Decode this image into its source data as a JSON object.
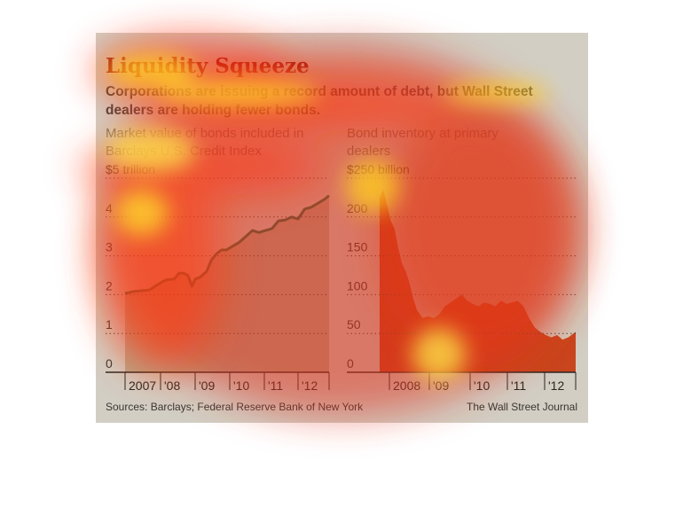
{
  "title": "Liquidity Squeeze",
  "subtitle": "Corporations are issuing a record amount of debt, but Wall Street dealers are holding fewer bonds.",
  "source": "Sources: Barclays; Federal Reserve Bank of New York",
  "credit": "The Wall Street Journal",
  "colors": {
    "panel_bg": "#d2cec4",
    "left_fill": "#b6a98f",
    "left_line": "#2c6b46",
    "right_fill": "#c8461e",
    "grid": "#4a4540"
  },
  "chart_data": [
    {
      "type": "area",
      "label": "Market value of bonds included in Barclays U.S. Credit Index",
      "unit_label": "$5 trillion",
      "yticks": [
        "0",
        "1",
        "2",
        "3",
        "4"
      ],
      "ylim": [
        0,
        5
      ],
      "xlim": [
        2006.5,
        2012.75
      ],
      "xtick_labels": [
        "2007",
        "'08",
        "'09",
        "'10",
        "'11",
        "'12"
      ],
      "x": [
        2006.5,
        2006.75,
        2007.0,
        2007.25,
        2007.5,
        2007.75,
        2008.0,
        2008.15,
        2008.3,
        2008.42,
        2008.55,
        2008.65,
        2008.8,
        2009.0,
        2009.15,
        2009.3,
        2009.45,
        2009.6,
        2009.8,
        2010.0,
        2010.2,
        2010.4,
        2010.6,
        2010.8,
        2011.0,
        2011.2,
        2011.4,
        2011.6,
        2011.8,
        2012.0,
        2012.2,
        2012.4,
        2012.6,
        2012.75
      ],
      "y": [
        2.03,
        2.08,
        2.1,
        2.12,
        2.26,
        2.38,
        2.4,
        2.55,
        2.55,
        2.5,
        2.22,
        2.4,
        2.45,
        2.6,
        2.9,
        3.05,
        3.15,
        3.15,
        3.25,
        3.35,
        3.5,
        3.65,
        3.6,
        3.65,
        3.7,
        3.9,
        3.92,
        4.0,
        3.95,
        4.2,
        4.25,
        4.35,
        4.45,
        4.55
      ]
    },
    {
      "type": "area",
      "label": "Bond inventory at primary dealers",
      "unit_label": "$250 billion",
      "yticks": [
        "0",
        "50",
        "100",
        "150",
        "200"
      ],
      "ylim": [
        0,
        250
      ],
      "xlim": [
        2007.75,
        2013.0
      ],
      "xtick_labels": [
        "2008",
        "'09",
        "'10",
        "'11",
        "'12"
      ],
      "x": [
        2007.75,
        2007.85,
        2007.95,
        2008.05,
        2008.15,
        2008.25,
        2008.35,
        2008.45,
        2008.55,
        2008.65,
        2008.75,
        2008.9,
        2009.05,
        2009.2,
        2009.35,
        2009.5,
        2009.65,
        2009.8,
        2009.95,
        2010.1,
        2010.25,
        2010.4,
        2010.55,
        2010.7,
        2010.85,
        2011.0,
        2011.15,
        2011.3,
        2011.45,
        2011.6,
        2011.75,
        2011.9,
        2012.05,
        2012.2,
        2012.35,
        2012.5,
        2012.65,
        2012.8,
        2013.0
      ],
      "y": [
        225,
        235,
        215,
        195,
        185,
        160,
        140,
        130,
        115,
        95,
        80,
        70,
        72,
        70,
        75,
        85,
        90,
        95,
        100,
        92,
        88,
        85,
        90,
        88,
        85,
        92,
        88,
        90,
        92,
        85,
        70,
        58,
        52,
        48,
        45,
        48,
        42,
        45,
        52
      ]
    }
  ]
}
